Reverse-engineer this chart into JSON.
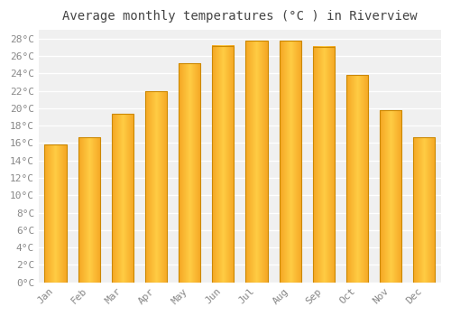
{
  "title": "Average monthly temperatures (°C ) in Riverview",
  "months": [
    "Jan",
    "Feb",
    "Mar",
    "Apr",
    "May",
    "Jun",
    "Jul",
    "Aug",
    "Sep",
    "Oct",
    "Nov",
    "Dec"
  ],
  "temperatures": [
    15.8,
    16.7,
    19.4,
    22.0,
    25.2,
    27.2,
    27.8,
    27.8,
    27.1,
    23.8,
    19.8,
    16.7
  ],
  "bar_color_center": "#FFCC44",
  "bar_color_edge": "#F5A623",
  "bar_edge_color": "#CC8800",
  "ylim": [
    0,
    29
  ],
  "yticks": [
    0,
    2,
    4,
    6,
    8,
    10,
    12,
    14,
    16,
    18,
    20,
    22,
    24,
    26,
    28
  ],
  "ytick_labels": [
    "0°C",
    "2°C",
    "4°C",
    "6°C",
    "8°C",
    "10°C",
    "12°C",
    "14°C",
    "16°C",
    "18°C",
    "20°C",
    "22°C",
    "24°C",
    "26°C",
    "28°C"
  ],
  "background_color": "#ffffff",
  "plot_bg_color": "#f0f0f0",
  "grid_color": "#ffffff",
  "title_fontsize": 10,
  "tick_fontsize": 8,
  "bar_width": 0.65,
  "figsize": [
    5.0,
    3.5
  ],
  "dpi": 100
}
